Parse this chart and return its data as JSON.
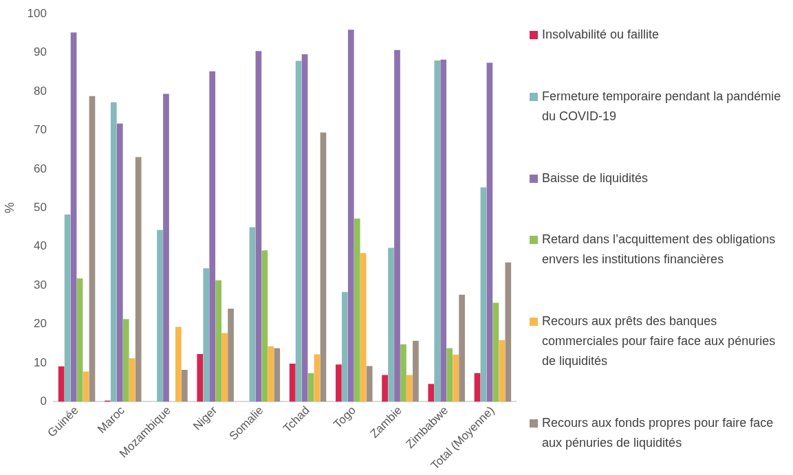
{
  "chart_data": {
    "type": "bar",
    "ylabel": "%",
    "categories": [
      "Guinée",
      "Maroc",
      "Mozambique",
      "Niger",
      "Somalie",
      "Tchad",
      "Togo",
      "Zambie",
      "Zimbabwe",
      "Total (Moyenne)"
    ],
    "series": [
      {
        "name": "Insolvabilité ou faillite",
        "color": "#d6254f",
        "values": [
          9.1,
          0.3,
          0,
          12.3,
          0,
          9.8,
          9.6,
          6.9,
          4.6,
          7.4
        ]
      },
      {
        "name": "Fermeture temporaire pendant la pandémie du COVID-19",
        "color": "#86b9bc",
        "values": [
          48.3,
          77.2,
          44.3,
          34.4,
          45.0,
          87.9,
          28.3,
          39.7,
          88.0,
          55.3
        ]
      },
      {
        "name": "Baisse de liquidités",
        "color": "#8e72b0",
        "values": [
          95.2,
          71.7,
          79.4,
          85.2,
          90.4,
          89.6,
          95.9,
          90.7,
          88.2,
          87.4
        ]
      },
      {
        "name": "Retard dans l’acquittement des obligations envers les institutions financières",
        "color": "#92c15a",
        "values": [
          31.8,
          21.3,
          0,
          31.3,
          39.0,
          7.4,
          47.2,
          14.8,
          13.8,
          25.5
        ]
      },
      {
        "name": "Recours aux prêts des banques commerciales pour faire face aux pénuries de liquidités",
        "color": "#f7b84f",
        "values": [
          7.8,
          11.2,
          19.3,
          17.7,
          14.3,
          12.2,
          38.3,
          6.9,
          12.1,
          15.9
        ]
      },
      {
        "name": "Recours aux fonds propres pour faire face aux pénuries de liquidités",
        "color": "#9e9085",
        "values": [
          78.8,
          63.1,
          8.2,
          24.0,
          13.8,
          69.4,
          9.2,
          15.7,
          27.6,
          35.9
        ]
      }
    ],
    "ylim": [
      0,
      100
    ],
    "yticks": [
      0,
      10,
      20,
      30,
      40,
      50,
      60,
      70,
      80,
      90,
      100
    ],
    "grid": false,
    "legend": "right"
  }
}
